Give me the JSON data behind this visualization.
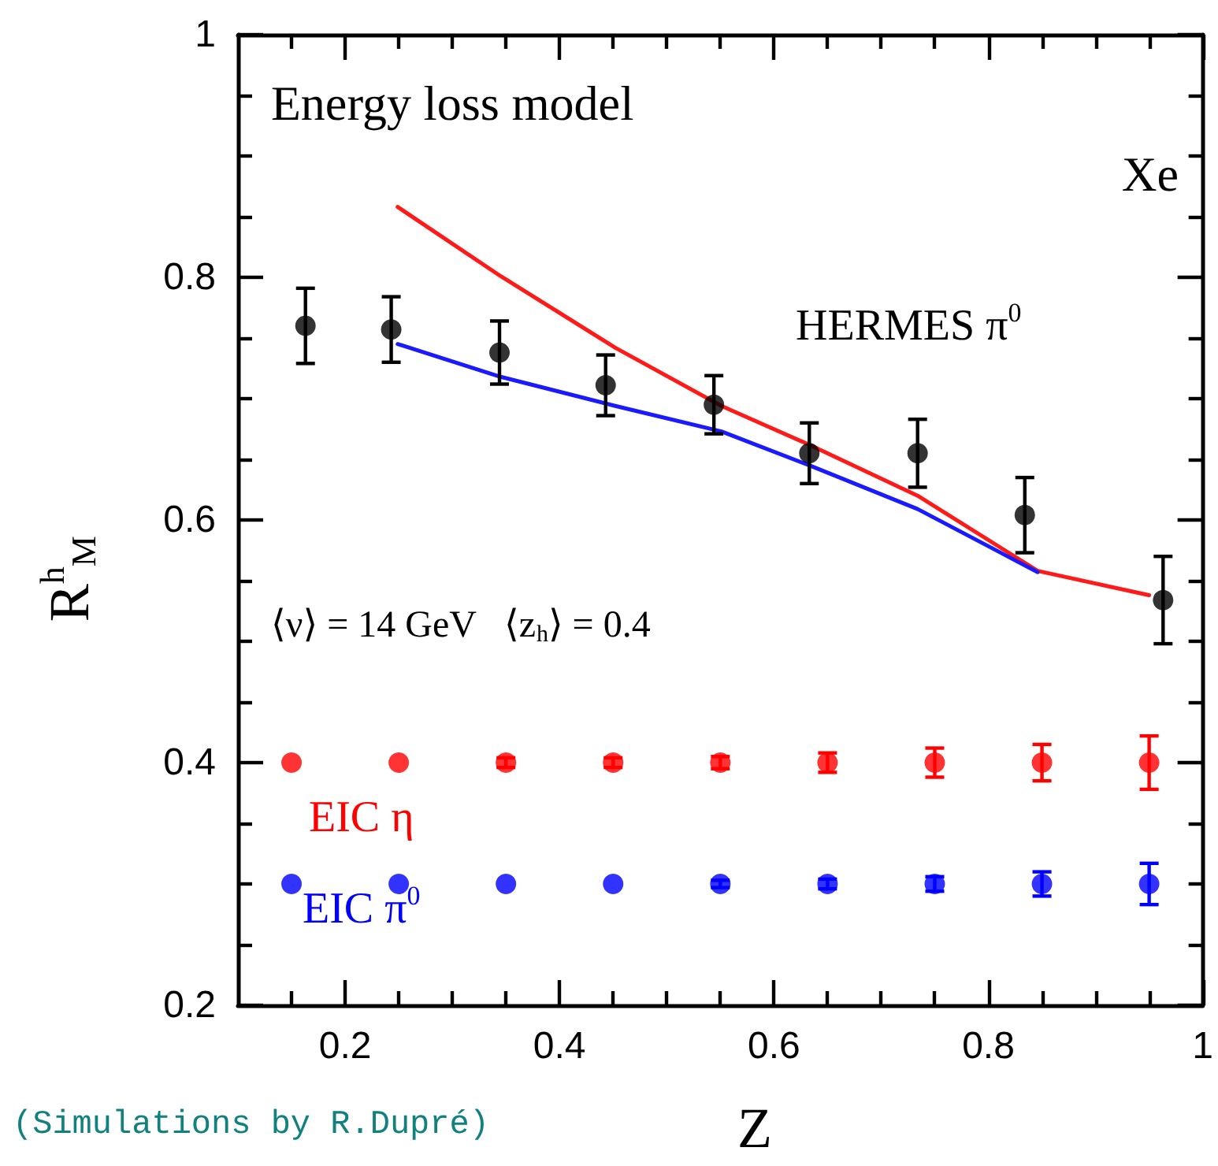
{
  "chart_data": {
    "type": "scatter",
    "xlabel": "Z",
    "ylabel": "R$^{h}$$_{M}$",
    "annotations": [
      "Energy loss model",
      "Xe",
      "⟨ν⟩ = 14 GeV   ⟨z$_{h}$⟩ = 0.4",
      "(Simulations by R.Dupré)"
    ],
    "xlim": [
      0.1,
      1
    ],
    "xticks": [
      {
        "value": 0.15,
        "label": null
      },
      0.2,
      {
        "value": 0.25,
        "label": null
      },
      {
        "value": 0.3,
        "label": null
      },
      {
        "value": 0.35,
        "label": null
      },
      0.4,
      {
        "value": 0.45,
        "label": null
      },
      {
        "value": 0.5,
        "label": null
      },
      {
        "value": 0.55,
        "label": null
      },
      0.6,
      {
        "value": 0.65,
        "label": null
      },
      {
        "value": 0.7,
        "label": null
      },
      {
        "value": 0.75,
        "label": null
      },
      0.8,
      {
        "value": 0.85,
        "label": null
      },
      {
        "value": 0.9,
        "label": null
      },
      {
        "value": 0.95,
        "label": null
      },
      1
    ],
    "ylim": [
      0.2,
      1
    ],
    "yticks": [
      0.2,
      {
        "value": 0.25,
        "label": null
      },
      {
        "value": 0.3,
        "label": null
      },
      {
        "value": 0.35,
        "label": null
      },
      0.4,
      {
        "value": 0.45,
        "label": null
      },
      {
        "value": 0.5,
        "label": null
      },
      {
        "value": 0.55,
        "label": null
      },
      0.6,
      {
        "value": 0.65,
        "label": null
      },
      {
        "value": 0.7,
        "label": null
      },
      {
        "value": 0.75,
        "label": null
      },
      0.8,
      {
        "value": 0.85,
        "label": null
      },
      {
        "value": 0.9,
        "label": null
      },
      {
        "value": 0.95,
        "label": null
      },
      1
    ],
    "grid": false,
    "legend": false,
    "series": [
      {
        "name": "HERMES π$^{0}$",
        "marker": "circle",
        "color": "#000000",
        "x": [
          0.163,
          0.243,
          0.344,
          0.443,
          0.544,
          0.633,
          0.734,
          0.834,
          0.963
        ],
        "values": [
          0.76,
          0.757,
          0.738,
          0.711,
          0.695,
          0.655,
          0.655,
          0.604,
          0.534
        ],
        "errors": [
          0.031,
          0.027,
          0.026,
          0.025,
          0.024,
          0.025,
          0.028,
          0.031,
          0.036
        ]
      },
      {
        "type": "line",
        "marker": "none",
        "line_style": "solid",
        "color": "#ff1a1a",
        "x": [
          0.249,
          0.345,
          0.452,
          0.551,
          0.633,
          0.734,
          0.846,
          0.95
        ],
        "values": [
          0.858,
          0.801,
          0.742,
          0.694,
          0.662,
          0.62,
          0.558,
          0.538
        ]
      },
      {
        "type": "line",
        "marker": "none",
        "line_style": "solid",
        "color": "#1a1aff",
        "x": [
          0.249,
          0.345,
          0.452,
          0.551,
          0.633,
          0.734,
          0.846
        ],
        "values": [
          0.745,
          0.718,
          0.694,
          0.673,
          0.645,
          0.609,
          0.557
        ]
      },
      {
        "name": "EIC η",
        "marker": "circle",
        "color": "#ff0000",
        "x": [
          0.15,
          0.25,
          0.35,
          0.45,
          0.55,
          0.65,
          0.75,
          0.85,
          0.95
        ],
        "values": [
          0.4,
          0.4,
          0.4,
          0.4,
          0.4,
          0.4,
          0.4,
          0.4,
          0.4
        ],
        "errors": [
          null,
          null,
          0.004,
          0.004,
          0.005,
          0.008,
          0.012,
          0.015,
          0.022
        ]
      },
      {
        "name": "EIC π$^{0}$",
        "marker": "circle",
        "color": "#0000ff",
        "x": [
          0.15,
          0.25,
          0.35,
          0.45,
          0.55,
          0.65,
          0.75,
          0.85,
          0.95
        ],
        "values": [
          0.3,
          0.3,
          0.3,
          0.3,
          0.3,
          0.3,
          0.3,
          0.3,
          0.3
        ],
        "errors": [
          null,
          null,
          null,
          null,
          0.003,
          0.004,
          0.006,
          0.01,
          0.017
        ]
      }
    ]
  }
}
